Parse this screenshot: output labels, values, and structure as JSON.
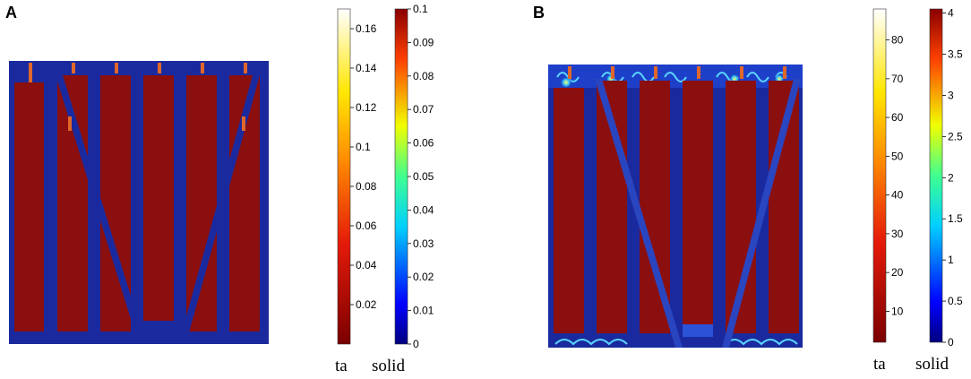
{
  "panels": [
    {
      "label": "A",
      "colorbars": [
        {
          "name": "ta",
          "title": "ta",
          "ticks": [
            "0.16",
            "0.14",
            "0.12",
            "0.1",
            "0.08",
            "0.06",
            "0.04",
            "0.02"
          ],
          "tick_values": [
            0.16,
            0.14,
            0.12,
            0.1,
            0.08,
            0.06,
            0.04,
            0.02
          ],
          "min": 0,
          "max": 0.17,
          "colormap": "hot"
        },
        {
          "name": "solid",
          "title": "solid",
          "ticks": [
            "0.1",
            "0.09",
            "0.08",
            "0.07",
            "0.06",
            "0.05",
            "0.04",
            "0.03",
            "0.02",
            "0.01",
            "0"
          ],
          "tick_values": [
            0.1,
            0.09,
            0.08,
            0.07,
            0.06,
            0.05,
            0.04,
            0.03,
            0.02,
            0.01,
            0
          ],
          "min": 0,
          "max": 0.1,
          "colormap": "jet"
        }
      ]
    },
    {
      "label": "B",
      "colorbars": [
        {
          "name": "ta",
          "title": "ta",
          "ticks": [
            "80",
            "70",
            "60",
            "50",
            "40",
            "30",
            "20",
            "10"
          ],
          "tick_values": [
            80,
            70,
            60,
            50,
            40,
            30,
            20,
            10
          ],
          "min": 2,
          "max": 88,
          "colormap": "hot"
        },
        {
          "name": "solid",
          "title": "solid",
          "ticks": [
            "4",
            "3.5",
            "3",
            "2.5",
            "2",
            "1.5",
            "1",
            "0.5",
            "0"
          ],
          "tick_values": [
            4,
            3.5,
            3,
            2.5,
            2,
            1.5,
            1,
            0.5,
            0
          ],
          "min": 0,
          "max": 4.05,
          "colormap": "jet"
        }
      ]
    }
  ],
  "colors": {
    "domain_blue": "#1a2a9e",
    "pillar_red": "#8b0f0f",
    "accent_orange": "#e0672a"
  }
}
